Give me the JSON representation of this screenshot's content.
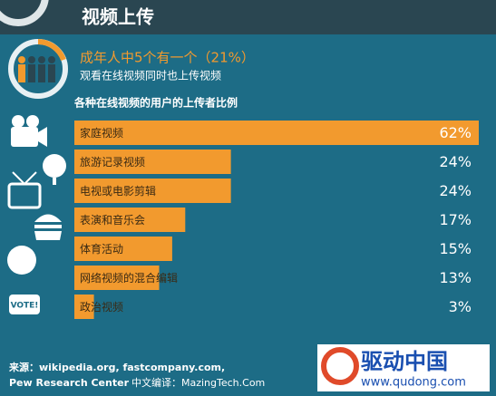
{
  "header": {
    "title": "视频上传"
  },
  "chart_data": {
    "type": "bar",
    "orientation": "horizontal",
    "title": "成年人中5个有一个（21%）",
    "subtitle": "观看在线视频同时也上传视频",
    "chart_title": "各种在线视频的用户的上传者比例",
    "categories": [
      "家庭视频",
      "旅游记录视频",
      "电视或电影剪辑",
      "表演和音乐会",
      "体育活动",
      "网络视频的混合编辑",
      "政治视频"
    ],
    "values": [
      62,
      24,
      24,
      17,
      15,
      13,
      3
    ],
    "value_labels": [
      "62%",
      "24%",
      "24%",
      "17%",
      "15%",
      "13%",
      "3%"
    ],
    "color": "#f29a2e"
  },
  "footer": {
    "source_line1": "来源：wikipedia.org, fastcompany.com,",
    "source_line2": "Pew Research Center",
    "credit": "中文编译：MazingTech.Com"
  },
  "logo": {
    "name": "驱动中国",
    "url": "www.qudong.com"
  }
}
